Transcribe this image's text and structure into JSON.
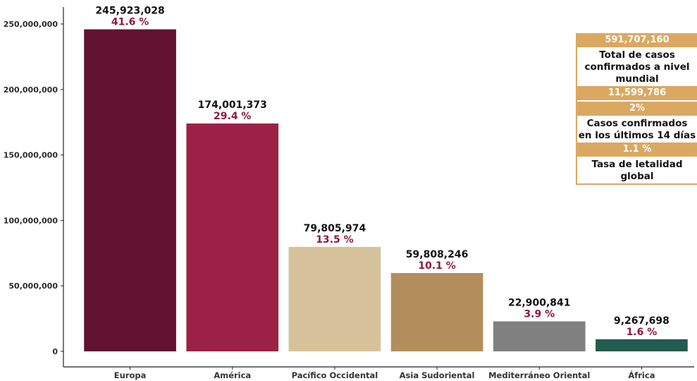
{
  "chart_data": {
    "type": "bar",
    "categories": [
      "Europa",
      "América",
      "Pacífico Occidental",
      "Asia Sudoriental",
      "Mediterráneo Oriental",
      "África"
    ],
    "values": [
      245923028,
      174001373,
      79805974,
      59808246,
      22900841,
      9267698
    ],
    "value_labels": [
      "245,923,028",
      "174,001,373",
      "79,805,974",
      "59,808,246",
      "22,900,841",
      "9,267,698"
    ],
    "percent_labels": [
      "41.6 %",
      "29.4 %",
      "13.5 %",
      "10.1 %",
      "3.9 %",
      "1.6 %"
    ],
    "colors": [
      "#611230",
      "#9b2246",
      "#d6c29a",
      "#b38e5d",
      "#808080",
      "#235b4e"
    ],
    "ylim": [
      0,
      250000000
    ],
    "yticks": [
      0,
      50000000,
      100000000,
      150000000,
      200000000,
      250000000
    ],
    "ytick_labels": [
      "0",
      "50,000,000",
      "100,000,000",
      "150,000,000",
      "200,000,000",
      "250,000,000"
    ],
    "title": "",
    "xlabel": "",
    "ylabel": "",
    "grid": false,
    "legend": "none"
  },
  "info_box": {
    "total_cases": "591,707,160",
    "total_cases_label_line1": "Total de casos",
    "total_cases_label_line2": "confirmados a nivel",
    "total_cases_label_line3": "mundial",
    "recent_cases": "11,599,786",
    "recent_percent": "2%",
    "recent_label_line1": "Casos confirmados",
    "recent_label_line2": "en los últimos 14 días",
    "lethality": "1.1 %",
    "lethality_label_line1": "Tasa de letalidad",
    "lethality_label_line2": "global",
    "accent_color": "#dba862"
  }
}
